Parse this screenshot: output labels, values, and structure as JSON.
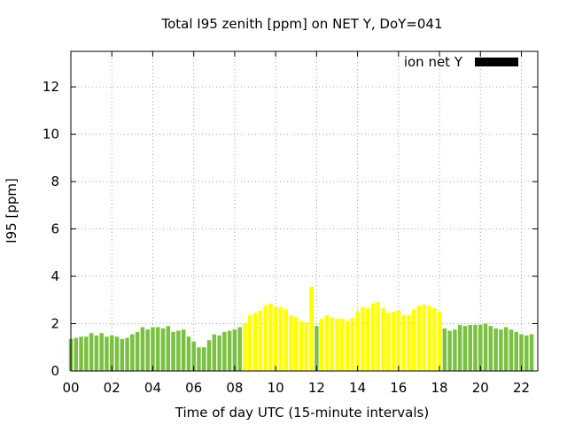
{
  "chart_data": {
    "type": "bar",
    "title": "Total I95 zenith [ppm] on NET Y, DoY=041",
    "xlabel": "Time of day UTC (15-minute intervals)",
    "ylabel": "I95 [ppm]",
    "xlim": [
      0,
      22.8
    ],
    "ylim": [
      0,
      13.5
    ],
    "x_ticks": [
      "00",
      "02",
      "04",
      "06",
      "08",
      "10",
      "12",
      "14",
      "16",
      "18",
      "20",
      "22"
    ],
    "y_ticks": [
      "0",
      "2",
      "4",
      "6",
      "8",
      "10",
      "12"
    ],
    "grid": true,
    "legend": {
      "label": "ion net Y",
      "color": "#000000",
      "position": "top-right"
    },
    "colors": {
      "low": "#7ac143",
      "elevated": "#ffff00"
    },
    "interval_hours": 0.25,
    "values": [
      1.35,
      1.4,
      1.45,
      1.45,
      1.6,
      1.5,
      1.6,
      1.45,
      1.5,
      1.45,
      1.35,
      1.4,
      1.55,
      1.65,
      1.85,
      1.75,
      1.85,
      1.85,
      1.8,
      1.9,
      1.65,
      1.7,
      1.75,
      1.45,
      1.25,
      1.0,
      1.0,
      1.3,
      1.55,
      1.5,
      1.65,
      1.7,
      1.75,
      1.85,
      2.0,
      2.35,
      2.45,
      2.55,
      2.75,
      2.85,
      2.7,
      2.7,
      2.6,
      2.35,
      2.25,
      2.1,
      2.05,
      3.55,
      1.9,
      2.2,
      2.35,
      2.25,
      2.2,
      2.2,
      2.1,
      2.25,
      2.5,
      2.7,
      2.65,
      2.85,
      2.9,
      2.65,
      2.45,
      2.5,
      2.55,
      2.35,
      2.35,
      2.6,
      2.75,
      2.8,
      2.75,
      2.65,
      2.5,
      1.8,
      1.7,
      1.75,
      1.95,
      1.9,
      1.95,
      1.95,
      1.95,
      2.0,
      1.9,
      1.8,
      1.75,
      1.85,
      1.75,
      1.65,
      1.55,
      1.5,
      1.55
    ],
    "categories": [
      "low",
      "low",
      "low",
      "low",
      "low",
      "low",
      "low",
      "low",
      "low",
      "low",
      "low",
      "low",
      "low",
      "low",
      "low",
      "low",
      "low",
      "low",
      "low",
      "low",
      "low",
      "low",
      "low",
      "low",
      "low",
      "low",
      "low",
      "low",
      "low",
      "low",
      "low",
      "low",
      "low",
      "low",
      "elevated",
      "elevated",
      "elevated",
      "elevated",
      "elevated",
      "elevated",
      "elevated",
      "elevated",
      "elevated",
      "elevated",
      "elevated",
      "elevated",
      "elevated",
      "elevated",
      "low",
      "elevated",
      "elevated",
      "elevated",
      "elevated",
      "elevated",
      "elevated",
      "elevated",
      "elevated",
      "elevated",
      "elevated",
      "elevated",
      "elevated",
      "elevated",
      "elevated",
      "elevated",
      "elevated",
      "elevated",
      "elevated",
      "elevated",
      "elevated",
      "elevated",
      "elevated",
      "elevated",
      "elevated",
      "low",
      "low",
      "low",
      "low",
      "low",
      "low",
      "low",
      "low",
      "low",
      "low",
      "low",
      "low",
      "low",
      "low",
      "low",
      "low",
      "low",
      "low"
    ]
  }
}
